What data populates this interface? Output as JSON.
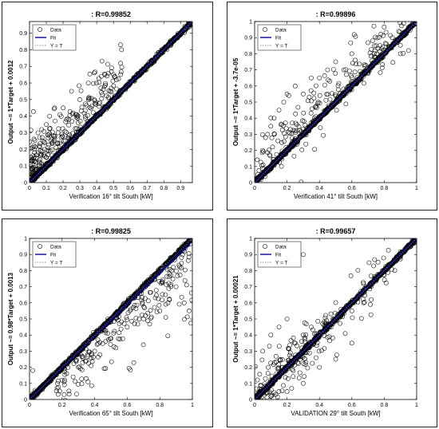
{
  "charts": [
    {
      "title": ": R=0.99852",
      "xlabel": "Verification 16° tilt South [kW]",
      "ylabel": "Output ~= 1*Target + 0.0012",
      "xticks": [
        "0",
        "0.1",
        "0.2",
        "0.3",
        "0.4",
        "0.5",
        "0.6",
        "0.7",
        "0.8",
        "0.9"
      ],
      "yticks": [
        "0",
        "0.1",
        "0.2",
        "0.3",
        "0.4",
        "0.5",
        "0.6",
        "0.7",
        "0.8",
        "0.9"
      ],
      "legend": [
        "Data",
        "Fit",
        "Y = T"
      ]
    },
    {
      "title": ": R=0.99896",
      "xlabel": "Verification 41° tilt South [kW]",
      "ylabel": "Output ~= 1*Target + -3.7e-05",
      "xticks": [
        "0",
        "0.2",
        "0.4",
        "0.6",
        "0.8",
        "1"
      ],
      "yticks": [
        "0",
        "0.1",
        "0.2",
        "0.3",
        "0.4",
        "0.5",
        "0.6",
        "0.7",
        "0.8",
        "0.9",
        "1"
      ],
      "legend": [
        "Data",
        "Fit",
        "Y = T"
      ]
    },
    {
      "title": ": R=0.99825",
      "xlabel": "Verification 65° tilt South [kW]",
      "ylabel": "Output ~= 0.98*Target + 0.0013",
      "xticks": [
        "0",
        "0.2",
        "0.4",
        "0.6",
        "0.8",
        "1"
      ],
      "yticks": [
        "0",
        "0.1",
        "0.2",
        "0.3",
        "0.4",
        "0.5",
        "0.6",
        "0.7",
        "0.8",
        "0.9",
        "1"
      ],
      "legend": [
        "Data",
        "Fit",
        "Y = T"
      ]
    },
    {
      "title": ": R=0.99657",
      "xlabel": "VALIDATION 29° tilt South [kW]",
      "ylabel": "Output ~= 1*Target + 0.00021",
      "xticks": [
        "0",
        "0.2",
        "0.4",
        "0.6",
        "0.8",
        "1"
      ],
      "yticks": [
        "0",
        "0.1",
        "0.2",
        "0.3",
        "0.4",
        "0.5",
        "0.6",
        "0.7",
        "0.8",
        "0.9",
        "1"
      ],
      "legend": [
        "Data",
        "Fit",
        "Y = T"
      ]
    }
  ],
  "chart_data": [
    {
      "type": "scatter",
      "title": ": R=0.99852",
      "xlabel": "Verification 16° tilt South [kW]",
      "ylabel": "Output ~= 1*Target + 0.0012",
      "xlim": [
        0,
        0.97
      ],
      "ylim": [
        0,
        0.97
      ],
      "fit": {
        "slope": 1,
        "intercept": 0.0012
      },
      "series": [
        {
          "name": "Data",
          "x": [
            0.02,
            0.04,
            0.05,
            0.07,
            0.09,
            0.1,
            0.12,
            0.15,
            0.18,
            0.2,
            0.22,
            0.25,
            0.28,
            0.3,
            0.33,
            0.35,
            0.38,
            0.4,
            0.42,
            0.45,
            0.48,
            0.5,
            0.53,
            0.55,
            0.58,
            0.6,
            0.63,
            0.65,
            0.68,
            0.7,
            0.73,
            0.75,
            0.78,
            0.8,
            0.83,
            0.85,
            0.88,
            0.9,
            0.93,
            0.95,
            0.03,
            0.05,
            0.08,
            0.1,
            0.12,
            0.15,
            0.2,
            0.25,
            0.3,
            0.35,
            0.4,
            0.45,
            0.5,
            0.02,
            0.04,
            0.06,
            0.09,
            0.13,
            0.17,
            0.22
          ],
          "y": [
            0.02,
            0.04,
            0.05,
            0.07,
            0.09,
            0.1,
            0.12,
            0.15,
            0.18,
            0.2,
            0.22,
            0.25,
            0.28,
            0.3,
            0.33,
            0.35,
            0.38,
            0.4,
            0.42,
            0.45,
            0.48,
            0.5,
            0.53,
            0.55,
            0.58,
            0.6,
            0.63,
            0.65,
            0.68,
            0.7,
            0.73,
            0.75,
            0.78,
            0.8,
            0.83,
            0.85,
            0.88,
            0.9,
            0.93,
            0.95,
            0.2,
            0.3,
            0.25,
            0.35,
            0.4,
            0.45,
            0.45,
            0.55,
            0.5,
            0.6,
            0.6,
            0.65,
            0.65,
            0.08,
            0.15,
            0.12,
            0.2,
            0.25,
            0.3,
            0.38
          ]
        },
        {
          "name": "Fit",
          "x": [
            0,
            0.97
          ],
          "y": [
            0.0012,
            0.9712
          ]
        },
        {
          "name": "Y = T",
          "x": [
            0,
            0.97
          ],
          "y": [
            0,
            0.97
          ]
        }
      ]
    },
    {
      "type": "scatter",
      "title": ": R=0.99896",
      "xlabel": "Verification 41° tilt South [kW]",
      "ylabel": "Output ~= 1*Target + -3.7e-05",
      "xlim": [
        0,
        1
      ],
      "ylim": [
        0,
        1
      ],
      "fit": {
        "slope": 1,
        "intercept": -3.7e-05
      },
      "series": [
        {
          "name": "Data",
          "x": [
            0.02,
            0.05,
            0.08,
            0.1,
            0.12,
            0.15,
            0.18,
            0.2,
            0.25,
            0.3,
            0.35,
            0.4,
            0.45,
            0.5,
            0.55,
            0.6,
            0.65,
            0.7,
            0.75,
            0.8,
            0.85,
            0.9,
            0.95,
            0.98,
            0.05,
            0.08,
            0.1,
            0.12,
            0.15,
            0.18,
            0.2,
            0.25,
            0.3,
            0.35,
            0.4,
            0.45,
            0.5,
            0.55,
            0.6,
            0.75,
            0.85,
            0.9,
            0.95
          ],
          "y": [
            0.02,
            0.05,
            0.08,
            0.1,
            0.12,
            0.15,
            0.18,
            0.2,
            0.25,
            0.3,
            0.35,
            0.4,
            0.45,
            0.5,
            0.55,
            0.6,
            0.65,
            0.7,
            0.75,
            0.8,
            0.85,
            0.9,
            0.95,
            0.98,
            0.2,
            0.3,
            0.35,
            0.4,
            0.45,
            0.5,
            0.55,
            0.6,
            0.55,
            0.65,
            0.65,
            0.7,
            0.75,
            0.7,
            0.8,
            0.85,
            0.9,
            0.8,
            0.82
          ]
        },
        {
          "name": "Fit",
          "x": [
            0,
            1
          ],
          "y": [
            -3.7e-05,
            0.999963
          ]
        },
        {
          "name": "Y = T",
          "x": [
            0,
            1
          ],
          "y": [
            0,
            1
          ]
        }
      ]
    },
    {
      "type": "scatter",
      "title": ": R=0.99825",
      "xlabel": "Verification 65° tilt South [kW]",
      "ylabel": "Output ~= 0.98*Target + 0.0013",
      "xlim": [
        0,
        1
      ],
      "ylim": [
        0,
        1
      ],
      "fit": {
        "slope": 0.98,
        "intercept": 0.0013
      },
      "series": [
        {
          "name": "Data",
          "x": [
            0.02,
            0.05,
            0.08,
            0.1,
            0.15,
            0.2,
            0.25,
            0.3,
            0.35,
            0.4,
            0.45,
            0.5,
            0.55,
            0.6,
            0.65,
            0.7,
            0.75,
            0.8,
            0.85,
            0.9,
            0.95,
            0.98,
            0.2,
            0.3,
            0.4,
            0.5,
            0.6,
            0.7,
            0.8,
            0.85,
            0.9,
            0.95,
            0.98,
            0.02
          ],
          "y": [
            0.02,
            0.05,
            0.08,
            0.1,
            0.15,
            0.2,
            0.25,
            0.3,
            0.35,
            0.4,
            0.45,
            0.5,
            0.55,
            0.6,
            0.65,
            0.7,
            0.75,
            0.8,
            0.85,
            0.9,
            0.95,
            0.98,
            0.12,
            0.2,
            0.3,
            0.38,
            0.45,
            0.5,
            0.55,
            0.6,
            0.7,
            0.6,
            0.55,
            0.18
          ]
        },
        {
          "name": "Fit",
          "x": [
            0,
            1
          ],
          "y": [
            0.0013,
            0.9813
          ]
        },
        {
          "name": "Y = T",
          "x": [
            0,
            1
          ],
          "y": [
            0,
            1
          ]
        }
      ]
    },
    {
      "type": "scatter",
      "title": ": R=0.99657",
      "xlabel": "VALIDATION 29° tilt South [kW]",
      "ylabel": "Output ~= 1*Target + 0.00021",
      "xlim": [
        0,
        1
      ],
      "ylim": [
        0,
        1
      ],
      "fit": {
        "slope": 1,
        "intercept": 0.00021
      },
      "series": [
        {
          "name": "Data",
          "x": [
            0.02,
            0.05,
            0.08,
            0.1,
            0.12,
            0.15,
            0.18,
            0.2,
            0.25,
            0.3,
            0.35,
            0.4,
            0.45,
            0.5,
            0.55,
            0.6,
            0.65,
            0.7,
            0.75,
            0.8,
            0.85,
            0.9,
            0.95,
            0.98,
            0.05,
            0.1,
            0.15,
            0.2,
            0.25,
            0.3,
            0.35,
            0.1,
            0.15,
            0.2,
            0.3,
            0.4,
            0.5,
            0.6,
            0.3
          ],
          "y": [
            0.02,
            0.05,
            0.08,
            0.1,
            0.12,
            0.15,
            0.18,
            0.2,
            0.25,
            0.3,
            0.35,
            0.4,
            0.45,
            0.5,
            0.55,
            0.6,
            0.65,
            0.7,
            0.75,
            0.8,
            0.85,
            0.9,
            0.95,
            0.98,
            0.3,
            0.4,
            0.45,
            0.5,
            0.35,
            0.4,
            0.45,
            0.02,
            0.05,
            0.05,
            0.1,
            0.2,
            0.25,
            0.35,
            0.9
          ]
        },
        {
          "name": "Fit",
          "x": [
            0,
            1
          ],
          "y": [
            0.00021,
            1.00021
          ]
        },
        {
          "name": "Y = T",
          "x": [
            0,
            1
          ],
          "y": [
            0,
            1
          ]
        }
      ]
    }
  ]
}
